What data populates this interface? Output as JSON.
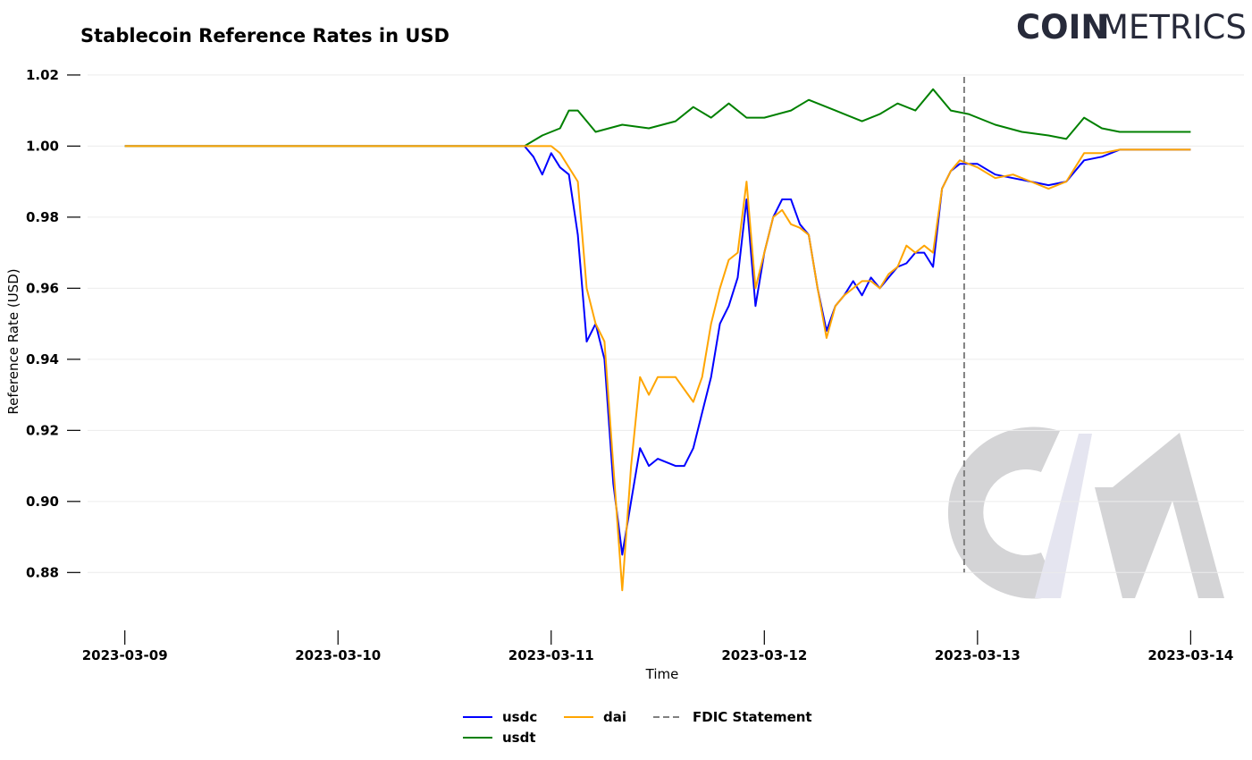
{
  "chart_data": {
    "type": "line",
    "title": "Stablecoin Reference Rates in USD",
    "xlabel": "Time",
    "ylabel": "Reference Rate (USD)",
    "x_ticks": [
      "2023-03-09",
      "2023-03-10",
      "2023-03-11",
      "2023-03-12",
      "2023-03-13",
      "2023-03-14"
    ],
    "y_ticks": [
      "0.88",
      "0.90",
      "0.92",
      "0.94",
      "0.96",
      "0.98",
      "1.00",
      "1.02"
    ],
    "xlim": [
      "2023-03-08 19:00",
      "2023-03-14 06:00"
    ],
    "ylim": [
      0.868,
      1.024
    ],
    "grid": "horizontal",
    "legend_position": "bottom-center",
    "watermark_logo": true,
    "series": [
      {
        "name": "usdc",
        "color": "#0000ff",
        "points": [
          [
            "2023-03-09 00:00",
            1.0
          ],
          [
            "2023-03-09 12:00",
            1.0
          ],
          [
            "2023-03-10 00:00",
            1.0
          ],
          [
            "2023-03-10 12:00",
            1.0
          ],
          [
            "2023-03-10 21:00",
            1.0
          ],
          [
            "2023-03-10 22:00",
            0.997
          ],
          [
            "2023-03-10 23:00",
            0.992
          ],
          [
            "2023-03-11 00:00",
            0.998
          ],
          [
            "2023-03-11 01:00",
            0.994
          ],
          [
            "2023-03-11 02:00",
            0.992
          ],
          [
            "2023-03-11 03:00",
            0.975
          ],
          [
            "2023-03-11 04:00",
            0.945
          ],
          [
            "2023-03-11 05:00",
            0.95
          ],
          [
            "2023-03-11 06:00",
            0.94
          ],
          [
            "2023-03-11 07:00",
            0.905
          ],
          [
            "2023-03-11 08:00",
            0.885
          ],
          [
            "2023-03-11 09:00",
            0.9
          ],
          [
            "2023-03-11 10:00",
            0.915
          ],
          [
            "2023-03-11 11:00",
            0.91
          ],
          [
            "2023-03-11 12:00",
            0.912
          ],
          [
            "2023-03-11 14:00",
            0.91
          ],
          [
            "2023-03-11 15:00",
            0.91
          ],
          [
            "2023-03-11 16:00",
            0.915
          ],
          [
            "2023-03-11 17:00",
            0.925
          ],
          [
            "2023-03-11 18:00",
            0.935
          ],
          [
            "2023-03-11 19:00",
            0.95
          ],
          [
            "2023-03-11 20:00",
            0.955
          ],
          [
            "2023-03-11 21:00",
            0.963
          ],
          [
            "2023-03-11 22:00",
            0.985
          ],
          [
            "2023-03-11 23:00",
            0.955
          ],
          [
            "2023-03-12 00:00",
            0.97
          ],
          [
            "2023-03-12 01:00",
            0.98
          ],
          [
            "2023-03-12 02:00",
            0.985
          ],
          [
            "2023-03-12 03:00",
            0.985
          ],
          [
            "2023-03-12 04:00",
            0.978
          ],
          [
            "2023-03-12 05:00",
            0.975
          ],
          [
            "2023-03-12 06:00",
            0.96
          ],
          [
            "2023-03-12 07:00",
            0.948
          ],
          [
            "2023-03-12 08:00",
            0.955
          ],
          [
            "2023-03-12 09:00",
            0.958
          ],
          [
            "2023-03-12 10:00",
            0.962
          ],
          [
            "2023-03-12 11:00",
            0.958
          ],
          [
            "2023-03-12 12:00",
            0.963
          ],
          [
            "2023-03-12 13:00",
            0.96
          ],
          [
            "2023-03-12 14:00",
            0.963
          ],
          [
            "2023-03-12 15:00",
            0.966
          ],
          [
            "2023-03-12 16:00",
            0.967
          ],
          [
            "2023-03-12 17:00",
            0.97
          ],
          [
            "2023-03-12 18:00",
            0.97
          ],
          [
            "2023-03-12 19:00",
            0.966
          ],
          [
            "2023-03-12 20:00",
            0.988
          ],
          [
            "2023-03-12 21:00",
            0.993
          ],
          [
            "2023-03-12 22:00",
            0.995
          ],
          [
            "2023-03-13 00:00",
            0.995
          ],
          [
            "2023-03-13 02:00",
            0.992
          ],
          [
            "2023-03-13 04:00",
            0.991
          ],
          [
            "2023-03-13 06:00",
            0.99
          ],
          [
            "2023-03-13 08:00",
            0.989
          ],
          [
            "2023-03-13 10:00",
            0.99
          ],
          [
            "2023-03-13 12:00",
            0.996
          ],
          [
            "2023-03-13 14:00",
            0.997
          ],
          [
            "2023-03-13 16:00",
            0.999
          ],
          [
            "2023-03-13 18:00",
            0.999
          ],
          [
            "2023-03-13 20:00",
            0.999
          ],
          [
            "2023-03-14 00:00",
            0.999
          ]
        ]
      },
      {
        "name": "usdt",
        "color": "#008000",
        "points": [
          [
            "2023-03-09 00:00",
            1.0
          ],
          [
            "2023-03-09 12:00",
            1.0
          ],
          [
            "2023-03-10 00:00",
            1.0
          ],
          [
            "2023-03-10 12:00",
            1.0
          ],
          [
            "2023-03-10 21:00",
            1.0
          ],
          [
            "2023-03-10 23:00",
            1.003
          ],
          [
            "2023-03-11 01:00",
            1.005
          ],
          [
            "2023-03-11 02:00",
            1.01
          ],
          [
            "2023-03-11 03:00",
            1.01
          ],
          [
            "2023-03-11 05:00",
            1.004
          ],
          [
            "2023-03-11 08:00",
            1.006
          ],
          [
            "2023-03-11 11:00",
            1.005
          ],
          [
            "2023-03-11 14:00",
            1.007
          ],
          [
            "2023-03-11 16:00",
            1.011
          ],
          [
            "2023-03-11 18:00",
            1.008
          ],
          [
            "2023-03-11 20:00",
            1.012
          ],
          [
            "2023-03-11 22:00",
            1.008
          ],
          [
            "2023-03-12 00:00",
            1.008
          ],
          [
            "2023-03-12 03:00",
            1.01
          ],
          [
            "2023-03-12 05:00",
            1.013
          ],
          [
            "2023-03-12 08:00",
            1.01
          ],
          [
            "2023-03-12 11:00",
            1.007
          ],
          [
            "2023-03-12 13:00",
            1.009
          ],
          [
            "2023-03-12 15:00",
            1.012
          ],
          [
            "2023-03-12 17:00",
            1.01
          ],
          [
            "2023-03-12 19:00",
            1.016
          ],
          [
            "2023-03-12 21:00",
            1.01
          ],
          [
            "2023-03-12 23:00",
            1.009
          ],
          [
            "2023-03-13 02:00",
            1.006
          ],
          [
            "2023-03-13 05:00",
            1.004
          ],
          [
            "2023-03-13 08:00",
            1.003
          ],
          [
            "2023-03-13 10:00",
            1.002
          ],
          [
            "2023-03-13 12:00",
            1.008
          ],
          [
            "2023-03-13 14:00",
            1.005
          ],
          [
            "2023-03-13 16:00",
            1.004
          ],
          [
            "2023-03-13 20:00",
            1.004
          ],
          [
            "2023-03-14 00:00",
            1.004
          ]
        ]
      },
      {
        "name": "dai",
        "color": "#ffa500",
        "points": [
          [
            "2023-03-09 00:00",
            1.0
          ],
          [
            "2023-03-09 12:00",
            1.0
          ],
          [
            "2023-03-10 00:00",
            1.0
          ],
          [
            "2023-03-10 12:00",
            1.0
          ],
          [
            "2023-03-10 21:00",
            1.0
          ],
          [
            "2023-03-10 23:00",
            1.0
          ],
          [
            "2023-03-11 00:00",
            1.0
          ],
          [
            "2023-03-11 01:00",
            0.998
          ],
          [
            "2023-03-11 02:00",
            0.994
          ],
          [
            "2023-03-11 03:00",
            0.99
          ],
          [
            "2023-03-11 04:00",
            0.96
          ],
          [
            "2023-03-11 05:00",
            0.95
          ],
          [
            "2023-03-11 06:00",
            0.945
          ],
          [
            "2023-03-11 07:00",
            0.91
          ],
          [
            "2023-03-11 08:00",
            0.875
          ],
          [
            "2023-03-11 09:00",
            0.91
          ],
          [
            "2023-03-11 10:00",
            0.935
          ],
          [
            "2023-03-11 11:00",
            0.93
          ],
          [
            "2023-03-11 12:00",
            0.935
          ],
          [
            "2023-03-11 14:00",
            0.935
          ],
          [
            "2023-03-11 16:00",
            0.928
          ],
          [
            "2023-03-11 17:00",
            0.935
          ],
          [
            "2023-03-11 18:00",
            0.95
          ],
          [
            "2023-03-11 19:00",
            0.96
          ],
          [
            "2023-03-11 20:00",
            0.968
          ],
          [
            "2023-03-11 21:00",
            0.97
          ],
          [
            "2023-03-11 22:00",
            0.99
          ],
          [
            "2023-03-11 23:00",
            0.96
          ],
          [
            "2023-03-12 00:00",
            0.97
          ],
          [
            "2023-03-12 01:00",
            0.98
          ],
          [
            "2023-03-12 02:00",
            0.982
          ],
          [
            "2023-03-12 03:00",
            0.978
          ],
          [
            "2023-03-12 04:00",
            0.977
          ],
          [
            "2023-03-12 05:00",
            0.975
          ],
          [
            "2023-03-12 06:00",
            0.96
          ],
          [
            "2023-03-12 07:00",
            0.946
          ],
          [
            "2023-03-12 08:00",
            0.955
          ],
          [
            "2023-03-12 09:00",
            0.958
          ],
          [
            "2023-03-12 10:00",
            0.96
          ],
          [
            "2023-03-12 11:00",
            0.962
          ],
          [
            "2023-03-12 12:00",
            0.962
          ],
          [
            "2023-03-12 13:00",
            0.96
          ],
          [
            "2023-03-12 14:00",
            0.964
          ],
          [
            "2023-03-12 15:00",
            0.966
          ],
          [
            "2023-03-12 16:00",
            0.972
          ],
          [
            "2023-03-12 17:00",
            0.97
          ],
          [
            "2023-03-12 18:00",
            0.972
          ],
          [
            "2023-03-12 19:00",
            0.97
          ],
          [
            "2023-03-12 20:00",
            0.988
          ],
          [
            "2023-03-12 21:00",
            0.993
          ],
          [
            "2023-03-12 22:00",
            0.996
          ],
          [
            "2023-03-13 00:00",
            0.994
          ],
          [
            "2023-03-13 02:00",
            0.991
          ],
          [
            "2023-03-13 04:00",
            0.992
          ],
          [
            "2023-03-13 06:00",
            0.99
          ],
          [
            "2023-03-13 08:00",
            0.988
          ],
          [
            "2023-03-13 10:00",
            0.99
          ],
          [
            "2023-03-13 12:00",
            0.998
          ],
          [
            "2023-03-13 14:00",
            0.998
          ],
          [
            "2023-03-13 16:00",
            0.999
          ],
          [
            "2023-03-13 18:00",
            0.999
          ],
          [
            "2023-03-13 20:00",
            0.999
          ],
          [
            "2023-03-14 00:00",
            0.999
          ]
        ]
      }
    ],
    "vertical_lines": [
      {
        "name": "FDIC Statement",
        "x": "2023-03-12 22:30",
        "color": "#808080",
        "style": "dashed"
      }
    ]
  },
  "logo": {
    "bold": "COIN",
    "light": "METRICS"
  }
}
